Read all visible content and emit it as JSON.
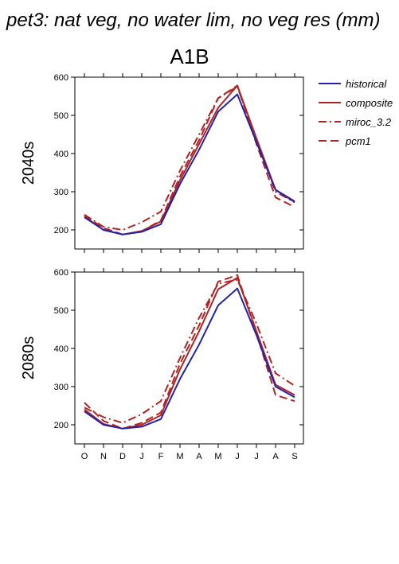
{
  "figure": {
    "title": "pet3: nat veg, no water lim, no veg res (mm)",
    "scenario": "A1B",
    "months": [
      "O",
      "N",
      "D",
      "J",
      "F",
      "M",
      "A",
      "M",
      "J",
      "J",
      "A",
      "S"
    ]
  },
  "legend": {
    "items": [
      {
        "key": "historical",
        "label": "historical",
        "color": "#2222aa",
        "dash": "solid"
      },
      {
        "key": "composite",
        "label": "composite",
        "color": "#b22222",
        "dash": "solid"
      },
      {
        "key": "miroc",
        "label": "miroc_3.2",
        "color": "#b22222",
        "dash": "dashdot"
      },
      {
        "key": "pcm1",
        "label": "pcm1",
        "color": "#b22222",
        "dash": "dash"
      }
    ]
  },
  "chart_data": [
    {
      "type": "line",
      "row_label": "2040s",
      "categories": [
        "O",
        "N",
        "D",
        "J",
        "F",
        "M",
        "A",
        "M",
        "J",
        "J",
        "A",
        "S"
      ],
      "ylim": [
        150,
        600
      ],
      "yticks": [
        200,
        300,
        400,
        500,
        600
      ],
      "ytick_labels": [
        "200",
        "300",
        "400",
        "500",
        "600"
      ],
      "series": [
        {
          "name": "historical",
          "values": [
            233,
            200,
            188,
            195,
            215,
            320,
            410,
            510,
            555,
            430,
            305,
            273
          ]
        },
        {
          "name": "composite",
          "values": [
            235,
            200,
            188,
            197,
            222,
            330,
            425,
            520,
            578,
            440,
            305,
            275
          ]
        },
        {
          "name": "miroc_3.2",
          "values": [
            240,
            208,
            200,
            220,
            248,
            355,
            450,
            545,
            575,
            435,
            300,
            272
          ]
        },
        {
          "name": "pcm1",
          "values": [
            238,
            205,
            188,
            196,
            225,
            340,
            435,
            545,
            578,
            425,
            285,
            260
          ]
        }
      ]
    },
    {
      "type": "line",
      "row_label": "2080s",
      "categories": [
        "O",
        "N",
        "D",
        "J",
        "F",
        "M",
        "A",
        "M",
        "J",
        "J",
        "A",
        "S"
      ],
      "ylim": [
        150,
        600
      ],
      "yticks": [
        200,
        300,
        400,
        500,
        600
      ],
      "ytick_labels": [
        "200",
        "300",
        "400",
        "500",
        "600"
      ],
      "series": [
        {
          "name": "historical",
          "values": [
            235,
            200,
            190,
            195,
            215,
            320,
            410,
            513,
            557,
            435,
            300,
            272
          ]
        },
        {
          "name": "composite",
          "values": [
            240,
            202,
            190,
            200,
            225,
            345,
            445,
            555,
            585,
            445,
            305,
            278
          ]
        },
        {
          "name": "miroc_3.2",
          "values": [
            245,
            220,
            205,
            228,
            262,
            375,
            480,
            570,
            580,
            465,
            335,
            302
          ]
        },
        {
          "name": "pcm1",
          "values": [
            258,
            210,
            190,
            205,
            232,
            360,
            460,
            575,
            592,
            440,
            278,
            262
          ]
        }
      ]
    }
  ]
}
